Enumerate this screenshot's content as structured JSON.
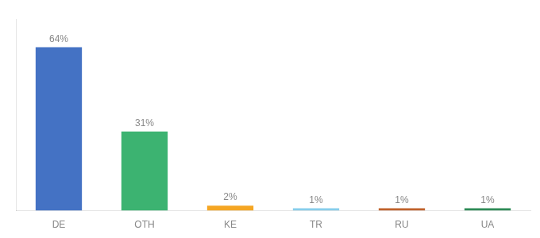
{
  "chart_data": {
    "type": "bar",
    "categories": [
      "DE",
      "OTH",
      "KE",
      "TR",
      "RU",
      "UA"
    ],
    "values": [
      64,
      31,
      2,
      1,
      1,
      1
    ],
    "value_labels": [
      "64%",
      "31%",
      "2%",
      "1%",
      "1%",
      "1%"
    ],
    "colors": [
      "#4472C4",
      "#3CB371",
      "#F5A623",
      "#87CEEB",
      "#C0622C",
      "#2E8B57"
    ],
    "ylim": [
      0,
      75
    ],
    "grid": false,
    "data_labels": true,
    "tick_labels": "x"
  }
}
